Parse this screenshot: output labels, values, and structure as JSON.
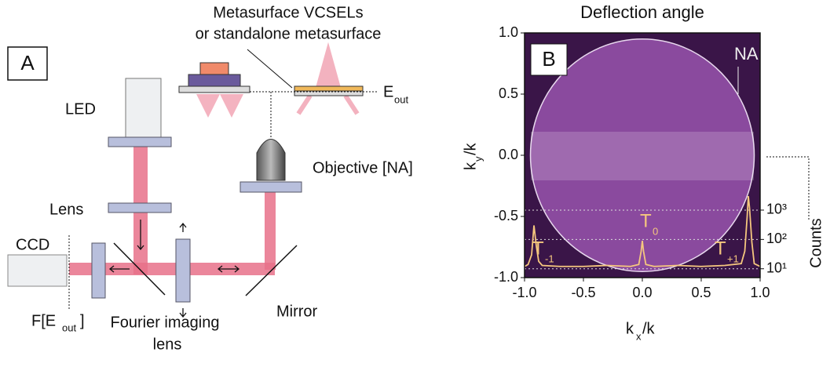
{
  "panel_a": {
    "label": "A",
    "sample_title": [
      "Metasurface VCSELs",
      "or standalone metasurface"
    ],
    "e_out": {
      "base": "E",
      "sub": "out"
    },
    "led": "LED",
    "lens": "Lens",
    "ccd": "CCD",
    "objective": "Objective [NA]",
    "mirror": "Mirror",
    "fourier": [
      "Fourier imaging",
      "lens"
    ],
    "f_e_out": {
      "pre": "F[E",
      "sub": "out",
      "post": "]"
    }
  },
  "chart_data": {
    "type": "line",
    "title": "Deflection angle",
    "panel_label": "B",
    "xlabel": {
      "base": "k",
      "sub": "x",
      "post": "/k"
    },
    "ylabel": {
      "base": "k",
      "sub": "y",
      "post": "/k"
    },
    "y2label": "Counts",
    "xlim": [
      -1,
      1
    ],
    "ylim": [
      -1,
      1
    ],
    "xticks": [
      {
        "value": -1,
        "label": "-1.0"
      },
      {
        "value": -0.5,
        "label": "-0.5"
      },
      {
        "value": 0,
        "label": "0.0"
      },
      {
        "value": 0.5,
        "label": "0.5"
      },
      {
        "value": 1,
        "label": "1.0"
      }
    ],
    "yticks": [
      {
        "value": -1,
        "label": "-1.0"
      },
      {
        "value": -0.5,
        "label": "-0.5"
      },
      {
        "value": 0,
        "label": "0.0"
      },
      {
        "value": 0.5,
        "label": "0.5"
      },
      {
        "value": 1,
        "label": "1.0"
      }
    ],
    "y2scale": "log",
    "y2lim": [
      5,
      1100000000
    ],
    "y2ticks": [
      {
        "value": 10,
        "label": "10¹"
      },
      {
        "value": 100,
        "label": "10²"
      },
      {
        "value": 1000,
        "label": "10³"
      }
    ],
    "na": 0.95,
    "annotations": {
      "na": "NA",
      "t0": {
        "base": "T",
        "sub": "0"
      },
      "tm1": {
        "base": "T",
        "sub": "-1"
      },
      "tp1": {
        "base": "T",
        "sub": "+1"
      }
    },
    "x": [
      -1,
      -0.97,
      -0.94,
      -0.92,
      -0.9,
      -0.88,
      -0.85,
      -0.7,
      -0.5,
      -0.3,
      -0.1,
      -0.03,
      -0.01,
      0,
      0.01,
      0.03,
      0.1,
      0.3,
      0.5,
      0.7,
      0.84,
      0.87,
      0.89,
      0.9,
      0.91,
      0.93,
      0.95,
      1
    ],
    "series": [
      {
        "name": "Counts",
        "color": "#f5c77e",
        "axis": "y2",
        "values": [
          12,
          14,
          30,
          300,
          60,
          18,
          13,
          12,
          12,
          13,
          12,
          14,
          40,
          90,
          40,
          14,
          12,
          13,
          12,
          13,
          15,
          40,
          600,
          3000,
          1200,
          80,
          15,
          12
        ]
      }
    ]
  }
}
